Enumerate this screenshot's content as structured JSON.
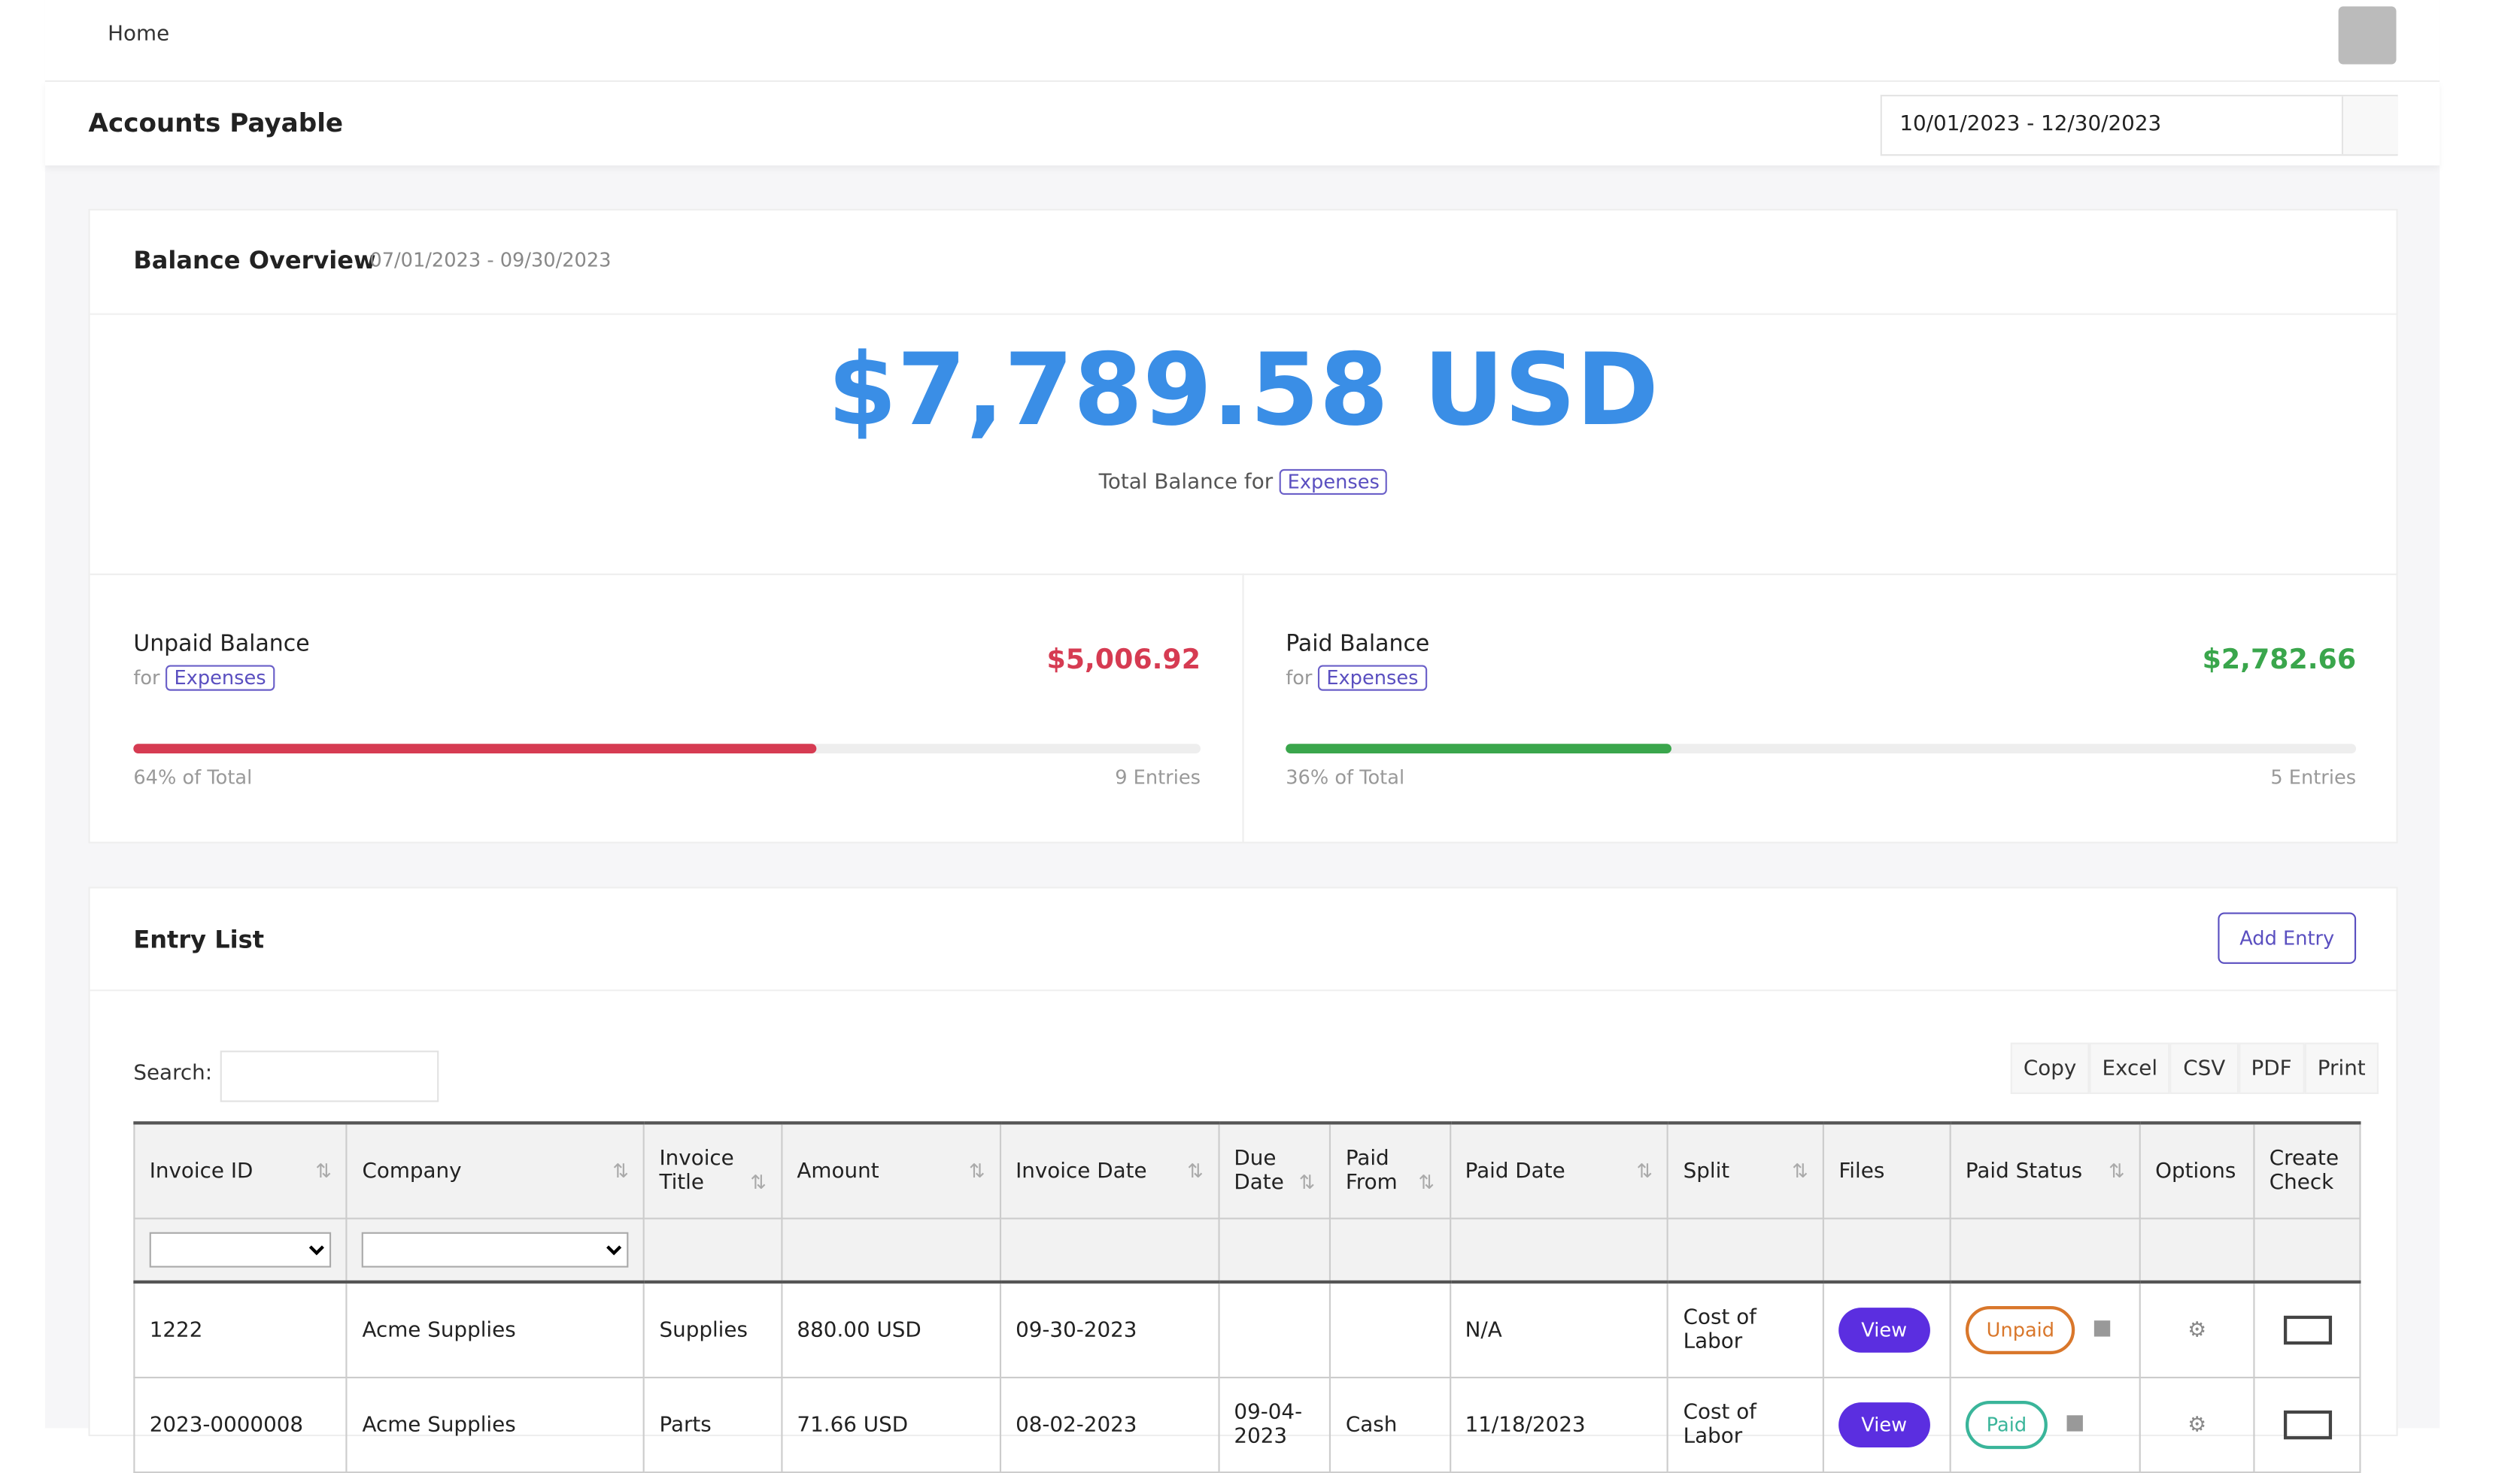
{
  "header": {
    "breadcrumb": "Home",
    "page_title": "Accounts Payable",
    "date_range": "10/01/2023 - 12/30/2023"
  },
  "balance_overview": {
    "title": "Balance Overview",
    "period": "07/01/2023 - 09/30/2023",
    "total": "$7,789.58 USD",
    "total_caption": "Total Balance for",
    "filter_tag": "Expenses",
    "unpaid": {
      "title": "Unpaid Balance",
      "for": "for",
      "tag": "Expenses",
      "amount": "$5,006.92",
      "percent": "64% of Total",
      "entries": "9 Entries"
    },
    "paid": {
      "title": "Paid Balance",
      "for": "for",
      "tag": "Expenses",
      "amount": "$2,782.66",
      "percent": "36% of Total",
      "entries": "5 Entries"
    }
  },
  "entry_list": {
    "title": "Entry List",
    "add_button": "Add Entry",
    "search_label": "Search:",
    "export_buttons": [
      "Copy",
      "Excel",
      "CSV",
      "PDF",
      "Print"
    ],
    "table": {
      "columns": [
        "Invoice ID",
        "Company",
        "Invoice Title",
        "Amount",
        "Invoice Date",
        "Due Date",
        "Paid From",
        "Paid Date",
        "Split",
        "Files",
        "Paid Status",
        "Options",
        "Create Check"
      ],
      "rows": [
        {
          "Invoice ID": "1222",
          "Company": "Acme Supplies",
          "Invoice Title": "Supplies",
          "Amount": "880.00 USD",
          "Invoice Date": "09-30-2023",
          "Paid Date": "N/A",
          "Split": "Cost of Labor",
          "Files": "View",
          "Paid Status": "Unpaid"
        },
        {
          "Invoice ID": "2023-0000008",
          "Company": "Acme Supplies",
          "Invoice Title": "Parts",
          "Amount": "71.66 USD",
          "Invoice Date": "08-02-2023",
          "Due Date": "09-04-2023",
          "Paid From": "Cash",
          "Paid Date": "11/18/2023",
          "Split": "Cost of Labor",
          "Files": "View",
          "Paid Status": "Paid"
        }
      ]
    }
  }
}
